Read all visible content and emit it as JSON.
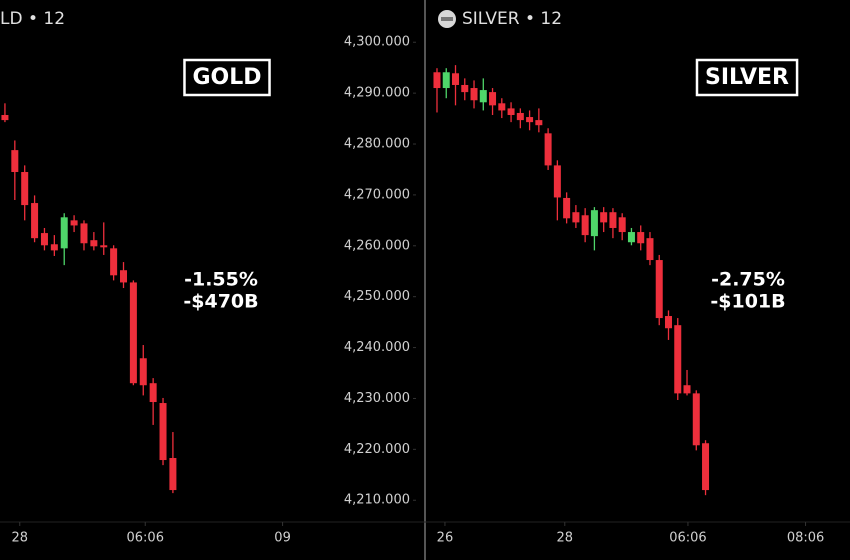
{
  "chart_data": [
    {
      "type": "candlestick",
      "header": "LD • 12",
      "title": "GOLD",
      "annotations": [
        "-1.55%",
        "-$470B"
      ],
      "up_color": "#4fd66a",
      "down_color": "#ee2f3c",
      "x": [
        0,
        1,
        2,
        3,
        4,
        5,
        6,
        7,
        8,
        9,
        10,
        11,
        12,
        13,
        14,
        15,
        16,
        17
      ],
      "open": [
        4285.7,
        4278.8,
        4274.5,
        4268.4,
        4262.5,
        4260.3,
        4259.5,
        4265.0,
        4264.4,
        4261.1,
        4260.1,
        4259.5,
        4255.2,
        4252.8,
        4237.9,
        4233.0,
        4229.1,
        4218.3
      ],
      "high": [
        4288.0,
        4280.7,
        4275.8,
        4269.9,
        4263.5,
        4262.1,
        4266.4,
        4266.0,
        4265.0,
        4262.7,
        4264.6,
        4260.1,
        4256.8,
        4253.2,
        4240.5,
        4234.0,
        4230.1,
        4223.4
      ],
      "low": [
        4284.3,
        4269.0,
        4265.0,
        4260.7,
        4259.1,
        4258.0,
        4256.2,
        4262.7,
        4259.1,
        4259.1,
        4258.2,
        4253.2,
        4251.7,
        4232.6,
        4230.6,
        4224.8,
        4216.9,
        4211.4
      ],
      "close": [
        4284.7,
        4274.5,
        4268.0,
        4261.5,
        4260.1,
        4259.1,
        4265.6,
        4264.0,
        4260.5,
        4259.9,
        4259.7,
        4254.2,
        4252.8,
        4233.0,
        4232.6,
        4229.3,
        4217.9,
        4212.0
      ],
      "xlim": [
        -0.5,
        32.9
      ],
      "xticks": [
        {
          "value": 1.5,
          "label": "28"
        },
        {
          "value": 14.2,
          "label": "06:06"
        },
        {
          "value": 28.1,
          "label": "09"
        }
      ],
      "ylim": [
        4207.1,
        4308.3
      ],
      "yticks": [
        {
          "value": 4210,
          "label": "4,210.000"
        },
        {
          "value": 4220,
          "label": "4,220.000"
        },
        {
          "value": 4230,
          "label": "4,230.000"
        },
        {
          "value": 4240,
          "label": "4,240.000"
        },
        {
          "value": 4250,
          "label": "4,250.000"
        },
        {
          "value": 4260,
          "label": "4,260.000"
        },
        {
          "value": 4270,
          "label": "4,270.000"
        },
        {
          "value": 4280,
          "label": "4,280.000"
        },
        {
          "value": 4290,
          "label": "4,290.000"
        },
        {
          "value": 4300,
          "label": "4,300.000"
        }
      ]
    },
    {
      "type": "candlestick",
      "header": "SILVER • 12",
      "title": "SILVER",
      "annotations": [
        "-2.75%",
        "-$101B"
      ],
      "up_color": "#4fd66a",
      "down_color": "#ee2f3c",
      "x": [
        0,
        1,
        2,
        3,
        4,
        5,
        6,
        7,
        8,
        9,
        10,
        11,
        12,
        13,
        14,
        15,
        16,
        17,
        18,
        19,
        20,
        21,
        22,
        23,
        24,
        25,
        26,
        27,
        28,
        29
      ],
      "open": [
        4294.1,
        4291.0,
        4293.9,
        4291.6,
        4291.0,
        4288.2,
        4290.2,
        4288.0,
        4287.0,
        4286.1,
        4285.3,
        4284.7,
        4282.1,
        4275.8,
        4269.4,
        4266.6,
        4266.0,
        4261.9,
        4266.6,
        4266.6,
        4265.6,
        4260.7,
        4262.7,
        4261.5,
        4257.2,
        4246.2,
        4244.4,
        4232.6,
        4231.0,
        4221.2
      ],
      "high": [
        4294.9,
        4294.9,
        4295.5,
        4292.9,
        4292.5,
        4292.9,
        4291.0,
        4289.0,
        4288.2,
        4287.0,
        4286.6,
        4287.0,
        4283.1,
        4276.8,
        4270.5,
        4268.0,
        4267.4,
        4267.6,
        4267.6,
        4267.4,
        4266.4,
        4263.5,
        4264.0,
        4262.7,
        4258.2,
        4247.3,
        4245.8,
        4235.6,
        4231.6,
        4221.8
      ],
      "low": [
        4286.2,
        4289.0,
        4287.6,
        4288.6,
        4287.0,
        4286.6,
        4285.7,
        4285.1,
        4284.3,
        4283.1,
        4282.7,
        4282.3,
        4274.9,
        4265.0,
        4264.4,
        4263.5,
        4260.7,
        4259.1,
        4262.7,
        4261.5,
        4261.1,
        4260.1,
        4259.1,
        4256.2,
        4244.4,
        4241.5,
        4229.7,
        4230.6,
        4219.8,
        4211.0
      ],
      "close": [
        4291.0,
        4294.1,
        4291.6,
        4290.2,
        4288.6,
        4290.6,
        4287.6,
        4286.6,
        4285.7,
        4284.7,
        4284.3,
        4283.7,
        4275.8,
        4269.5,
        4265.4,
        4264.6,
        4262.1,
        4267.0,
        4264.6,
        4263.5,
        4262.7,
        4262.7,
        4260.5,
        4257.2,
        4245.8,
        4243.8,
        4231.0,
        4231.0,
        4220.8,
        4212.0
      ],
      "xlim": [
        -0.97,
        44.6
      ],
      "xticks": [
        {
          "value": 0.86,
          "label": "26"
        },
        {
          "value": 13.8,
          "label": "28"
        },
        {
          "value": 27.1,
          "label": "06:06"
        },
        {
          "value": 39.8,
          "label": "08:06"
        }
      ],
      "ylim": [
        4207.1,
        4308.3
      ]
    }
  ]
}
